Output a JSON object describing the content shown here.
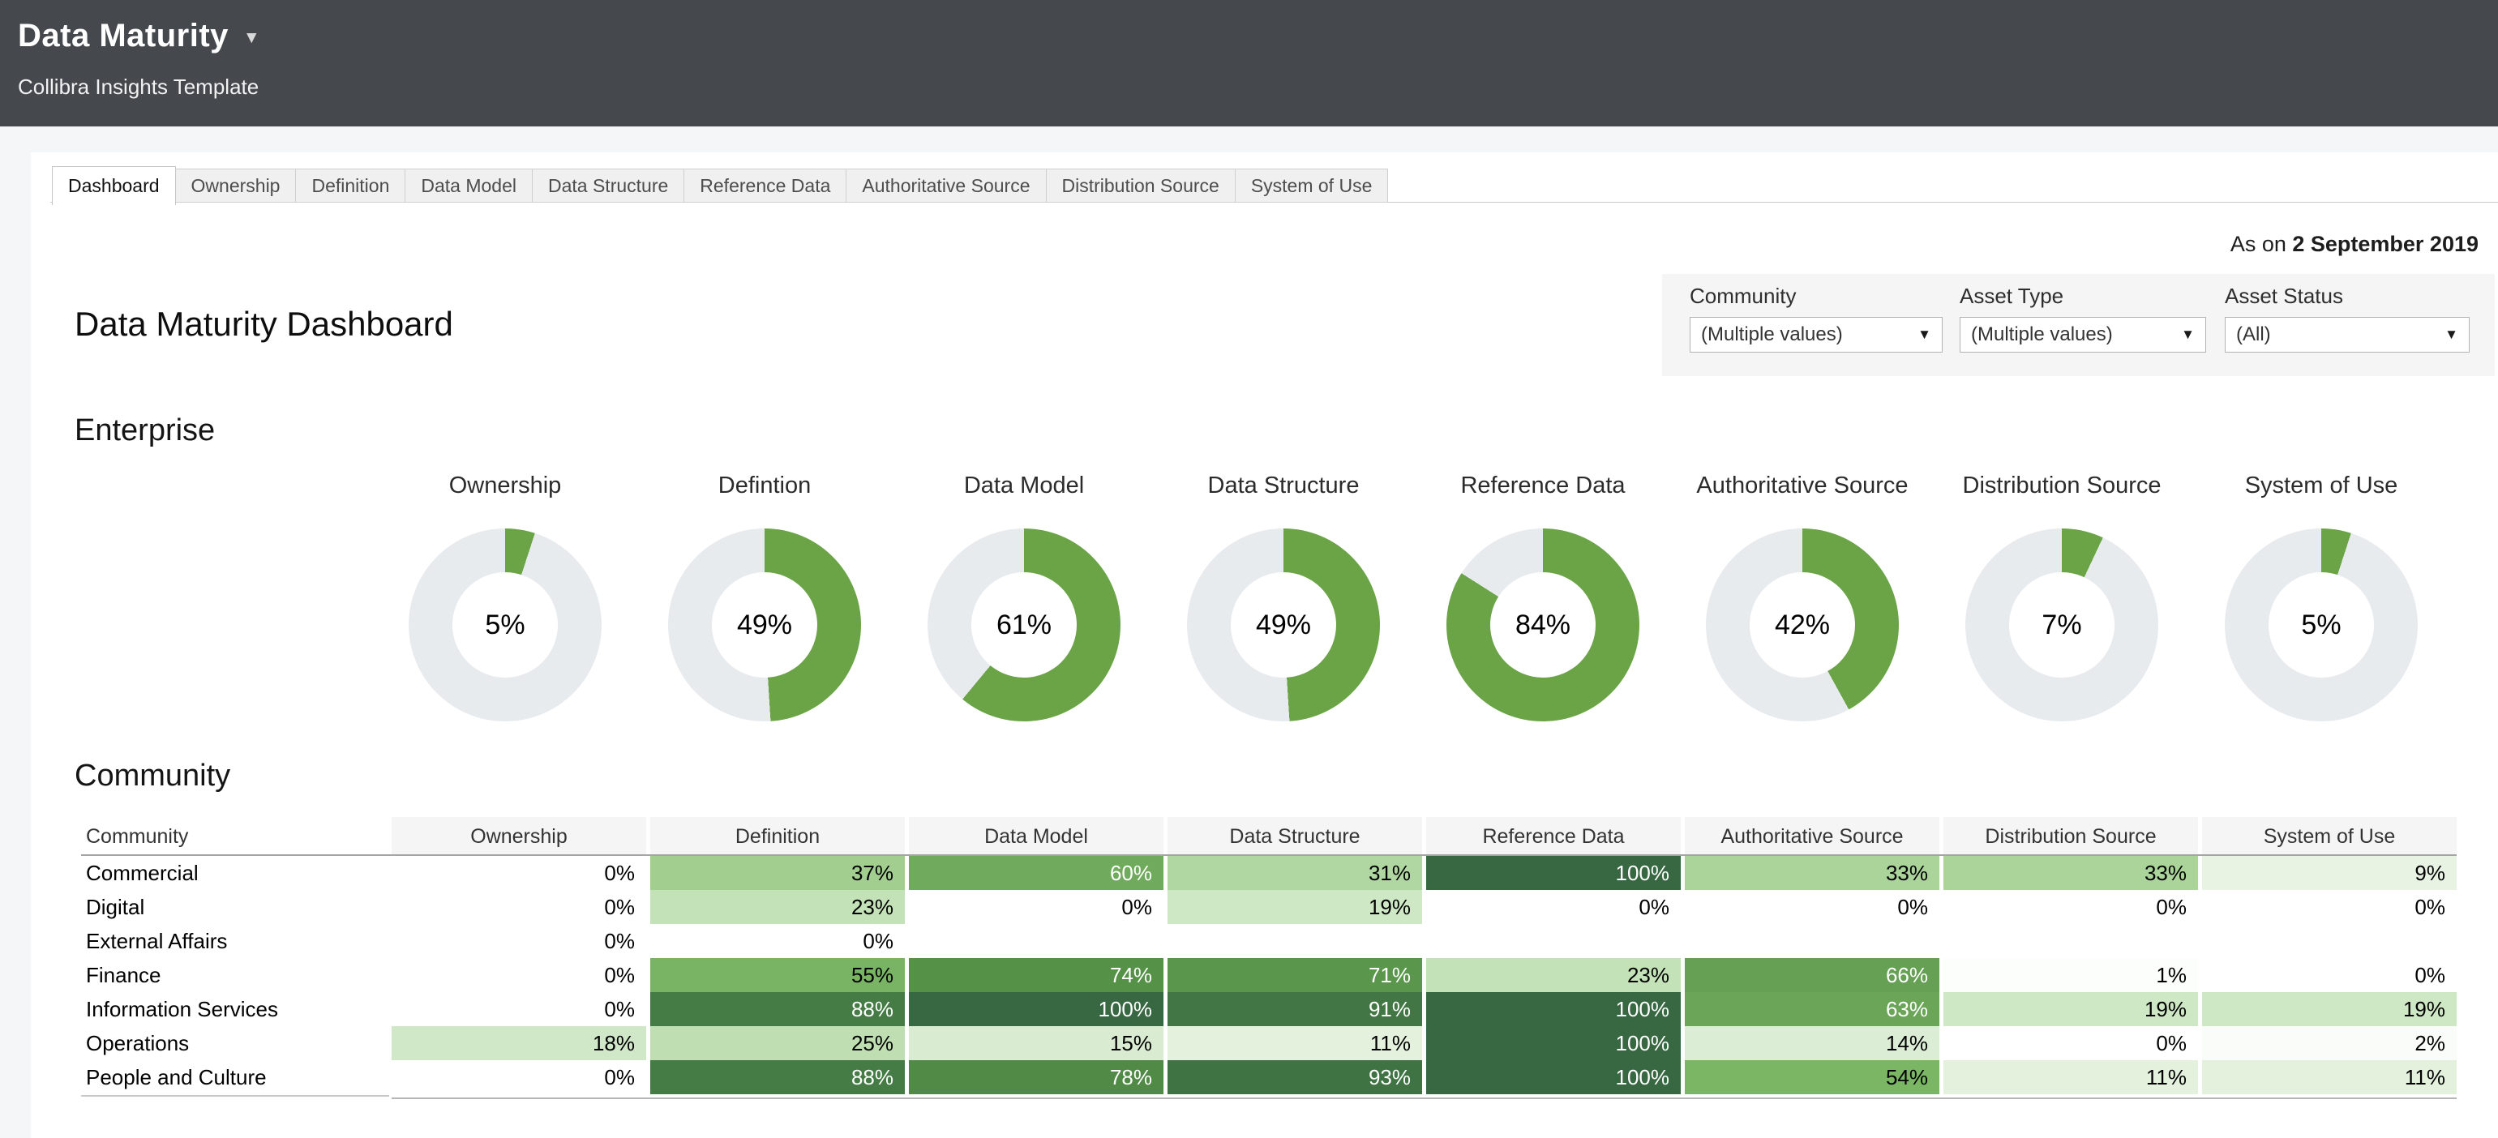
{
  "colors": {
    "donut_green": "#6ba447",
    "donut_track": "#e8ebee",
    "ramp": [
      [
        0,
        "#ffffff"
      ],
      [
        25,
        "#bfdfb2"
      ],
      [
        50,
        "#82bd6b"
      ],
      [
        75,
        "#548f47"
      ],
      [
        100,
        "#386842"
      ]
    ],
    "white_text_threshold": 60,
    "header_bg": "#45484c",
    "filter_panel_bg": "#f5f5f5"
  },
  "header": {
    "title": "Data Maturity",
    "caret": "▼",
    "subtitle": "Collibra Insights Template"
  },
  "tabs": {
    "active": "Dashboard",
    "items": [
      "Dashboard",
      "Ownership",
      "Definition",
      "Data Model",
      "Data Structure",
      "Reference Data",
      "Authoritative Source",
      "Distribution Source",
      "System of Use"
    ]
  },
  "as_on": {
    "prefix": "As on ",
    "date": "2 September 2019"
  },
  "filters": {
    "caret": "▼",
    "items": [
      {
        "label": "Community",
        "value": "(Multiple values)"
      },
      {
        "label": "Asset Type",
        "value": "(Multiple values)"
      },
      {
        "label": "Asset Status",
        "value": "(All)"
      }
    ]
  },
  "page_title": "Data Maturity Dashboard",
  "unit": "%",
  "enterprise": {
    "title": "Enterprise",
    "donuts": [
      {
        "label": "Ownership",
        "value": 5
      },
      {
        "label": "Defintion",
        "value": 49
      },
      {
        "label": "Data Model",
        "value": 61
      },
      {
        "label": "Data Structure",
        "value": 49
      },
      {
        "label": "Reference Data",
        "value": 84
      },
      {
        "label": "Authoritative Source",
        "value": 42
      },
      {
        "label": "Distribution Source",
        "value": 7
      },
      {
        "label": "System of Use",
        "value": 5
      }
    ]
  },
  "community": {
    "title": "Community",
    "table": {
      "row_header": "Community",
      "columns": [
        "Ownership",
        "Definition",
        "Data Model",
        "Data Structure",
        "Reference Data",
        "Authoritative Source",
        "Distribution Source",
        "System of Use"
      ],
      "rows": [
        {
          "name": "Commercial",
          "values": [
            0,
            37,
            60,
            31,
            100,
            33,
            33,
            9
          ]
        },
        {
          "name": "Digital",
          "values": [
            0,
            23,
            0,
            19,
            0,
            0,
            0,
            0
          ]
        },
        {
          "name": "External Affairs",
          "values": [
            0,
            0,
            null,
            null,
            null,
            null,
            null,
            null
          ]
        },
        {
          "name": "Finance",
          "values": [
            0,
            55,
            74,
            71,
            23,
            66,
            1,
            0
          ]
        },
        {
          "name": "Information Services",
          "values": [
            0,
            88,
            100,
            91,
            100,
            63,
            19,
            19
          ]
        },
        {
          "name": "Operations",
          "values": [
            18,
            25,
            15,
            11,
            100,
            14,
            0,
            2
          ]
        },
        {
          "name": "People and Culture",
          "values": [
            0,
            88,
            78,
            93,
            100,
            54,
            11,
            11
          ]
        }
      ]
    }
  },
  "chart_data": [
    {
      "type": "pie",
      "title": "Enterprise maturity donuts (% complete, green vs gray remainder)",
      "categories": [
        "Ownership",
        "Defintion",
        "Data Model",
        "Data Structure",
        "Reference Data",
        "Authoritative Source",
        "Distribution Source",
        "System of Use"
      ],
      "values": [
        5,
        49,
        61,
        49,
        84,
        42,
        7,
        5
      ]
    },
    {
      "type": "heatmap",
      "title": "Community maturity table (% with green intensity shading)",
      "x": [
        "Ownership",
        "Definition",
        "Data Model",
        "Data Structure",
        "Reference Data",
        "Authoritative Source",
        "Distribution Source",
        "System of Use"
      ],
      "y": [
        "Commercial",
        "Digital",
        "External Affairs",
        "Finance",
        "Information Services",
        "Operations",
        "People and Culture"
      ],
      "values": [
        [
          0,
          37,
          60,
          31,
          100,
          33,
          33,
          9
        ],
        [
          0,
          23,
          0,
          19,
          0,
          0,
          0,
          0
        ],
        [
          0,
          0,
          null,
          null,
          null,
          null,
          null,
          null
        ],
        [
          0,
          55,
          74,
          71,
          23,
          66,
          1,
          0
        ],
        [
          0,
          88,
          100,
          91,
          100,
          63,
          19,
          19
        ],
        [
          18,
          25,
          15,
          11,
          100,
          14,
          0,
          2
        ],
        [
          0,
          88,
          78,
          93,
          100,
          54,
          11,
          11
        ]
      ]
    }
  ]
}
